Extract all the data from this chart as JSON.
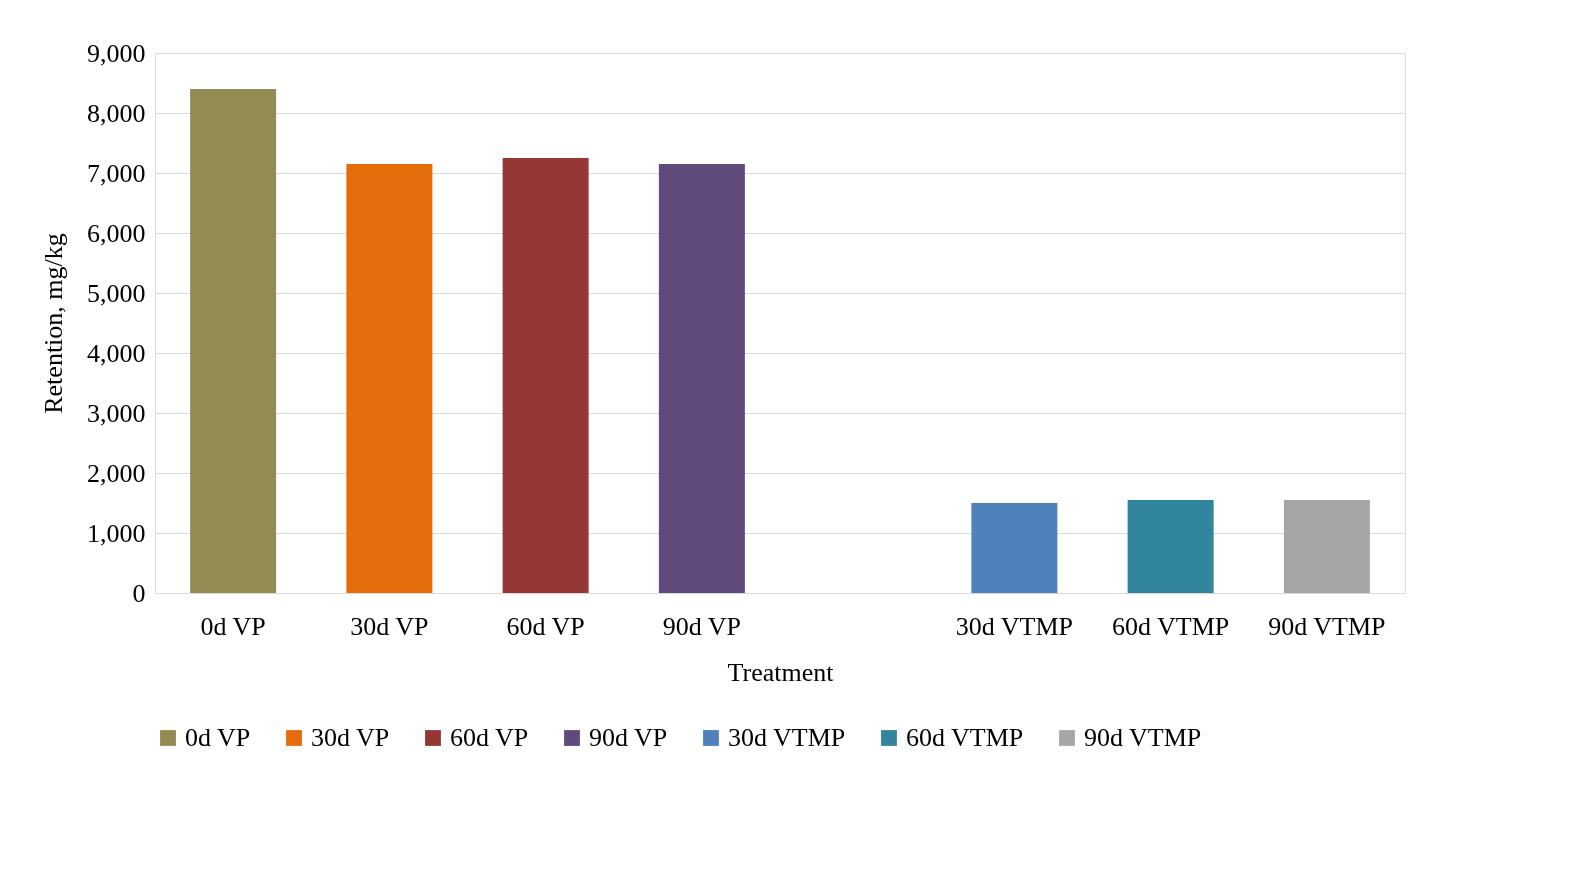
{
  "chart_data": {
    "type": "bar",
    "xlabel": "Treatment",
    "ylabel": "Retention, mg/kg",
    "categories": [
      "0d VP",
      "30d VP",
      "60d VP",
      "90d VP",
      null,
      "30d VTMP",
      "60d VTMP",
      "90d VTMP"
    ],
    "series": [
      {
        "name": "0d VP",
        "color": "#948a54",
        "values": [
          8400,
          null,
          null,
          null,
          null,
          null,
          null,
          null
        ]
      },
      {
        "name": "30d VP",
        "color": "#e46c0a",
        "values": [
          null,
          7150,
          null,
          null,
          null,
          null,
          null,
          null
        ]
      },
      {
        "name": "60d VP",
        "color": "#953735",
        "values": [
          null,
          null,
          7250,
          null,
          null,
          null,
          null,
          null
        ]
      },
      {
        "name": "90d VP",
        "color": "#604a7b",
        "values": [
          null,
          null,
          null,
          7150,
          null,
          null,
          null,
          null
        ]
      },
      {
        "name": "30d VTMP",
        "color": "#4f81bd",
        "values": [
          null,
          null,
          null,
          null,
          null,
          1500,
          null,
          null
        ]
      },
      {
        "name": "60d VTMP",
        "color": "#31859c",
        "values": [
          null,
          null,
          null,
          null,
          null,
          null,
          1550,
          null
        ]
      },
      {
        "name": "90d VTMP",
        "color": "#a6a6a6",
        "values": [
          null,
          null,
          null,
          null,
          null,
          null,
          null,
          1550
        ]
      }
    ],
    "ylim": [
      0,
      9000
    ],
    "yticks": [
      0,
      {
        "value": 1000,
        "label": "1,000"
      },
      {
        "value": 2000,
        "label": "2,000"
      },
      {
        "value": 3000,
        "label": "3,000"
      },
      {
        "value": 4000,
        "label": "4,000"
      },
      {
        "value": 5000,
        "label": "5,000"
      },
      {
        "value": 6000,
        "label": "6,000"
      },
      {
        "value": 7000,
        "label": "7,000"
      },
      {
        "value": 8000,
        "label": "8,000"
      },
      {
        "value": 9000,
        "label": "9,000"
      }
    ],
    "grid": "y",
    "legend": "bottom"
  }
}
